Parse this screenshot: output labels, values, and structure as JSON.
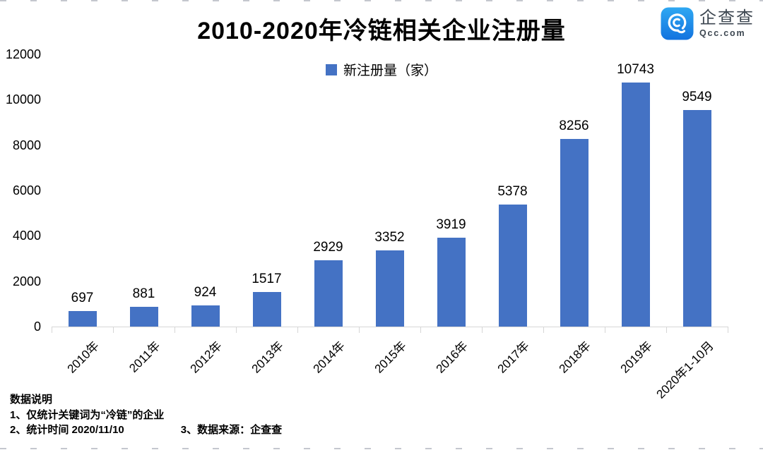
{
  "page": {
    "title": "2010-2020年冷链相关企业注册量",
    "logo": {
      "name": "企查查",
      "domain": "Qcc.com"
    },
    "legend": {
      "label": "新注册量（家）"
    },
    "footer": {
      "heading": "数据说明",
      "note1": "1、仅统计关键词为“冷链”的企业",
      "note2": "2、统计时间 2020/11/10",
      "note3": "3、数据来源：企查查"
    },
    "colors": {
      "bar": "#4472C4",
      "axis": "#D6D6D6",
      "logo_blue_light": "#2FA8F2",
      "logo_blue_dark": "#1273DF",
      "logo_text": "#3C4650"
    }
  },
  "chart_data": {
    "type": "bar",
    "title": "2010-2020年冷链相关企业注册量",
    "series_name": "新注册量（家）",
    "categories": [
      "2010年",
      "2011年",
      "2012年",
      "2013年",
      "2014年",
      "2015年",
      "2016年",
      "2017年",
      "2018年",
      "2019年",
      "2020年1-10月"
    ],
    "values": [
      697,
      881,
      924,
      1517,
      2929,
      3352,
      3919,
      5378,
      8256,
      10743,
      9549
    ],
    "ylim": [
      0,
      12000
    ],
    "yticks": [
      0,
      2000,
      4000,
      6000,
      8000,
      10000,
      12000
    ],
    "grid": false,
    "legend_position": "top-center",
    "data_labels": true
  }
}
